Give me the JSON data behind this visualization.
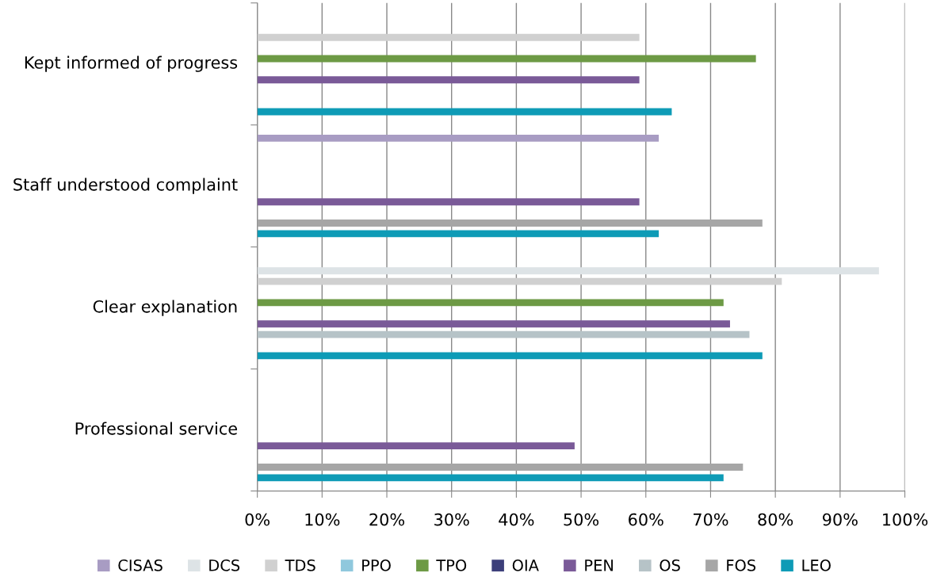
{
  "chart_data": {
    "type": "bar",
    "orientation": "horizontal",
    "categories": [
      "Kept informed of progress",
      "Staff understood complaint",
      "Clear explanation",
      "Professional service"
    ],
    "series": [
      {
        "name": "CISAS",
        "color": "#a89cc3",
        "values": [
          null,
          62,
          null,
          null
        ]
      },
      {
        "name": "DCS",
        "color": "#dde3e6",
        "values": [
          null,
          null,
          96,
          null
        ]
      },
      {
        "name": "TDS",
        "color": "#d0d0d0",
        "values": [
          59,
          null,
          81,
          null
        ]
      },
      {
        "name": "PPO",
        "color": "#8fc8dd",
        "values": [
          null,
          null,
          null,
          null
        ]
      },
      {
        "name": "TPO",
        "color": "#6d9a45",
        "values": [
          77,
          null,
          72,
          null
        ]
      },
      {
        "name": "OIA",
        "color": "#3c3f7a",
        "values": [
          null,
          null,
          null,
          null
        ]
      },
      {
        "name": "PEN",
        "color": "#7a5a98",
        "values": [
          59,
          59,
          73,
          49
        ]
      },
      {
        "name": "OS",
        "color": "#b6c3c7",
        "values": [
          null,
          null,
          76,
          null
        ]
      },
      {
        "name": "FOS",
        "color": "#a6a6a6",
        "values": [
          null,
          78,
          null,
          75
        ]
      },
      {
        "name": "LEO",
        "color": "#0e9bb6",
        "values": [
          64,
          62,
          78,
          72
        ]
      }
    ],
    "xlim": [
      0,
      100
    ],
    "xticks": [
      {
        "value": 0,
        "label": "0%"
      },
      {
        "value": 10,
        "label": "10%"
      },
      {
        "value": 20,
        "label": "20%"
      },
      {
        "value": 30,
        "label": "30%"
      },
      {
        "value": 40,
        "label": "40%"
      },
      {
        "value": 50,
        "label": "50%"
      },
      {
        "value": 60,
        "label": "60%"
      },
      {
        "value": 70,
        "label": "70%"
      },
      {
        "value": 80,
        "label": "80%"
      },
      {
        "value": 90,
        "label": "90%"
      },
      {
        "value": 100,
        "label": "100%"
      }
    ],
    "grid": "x",
    "legend": "bottom"
  }
}
